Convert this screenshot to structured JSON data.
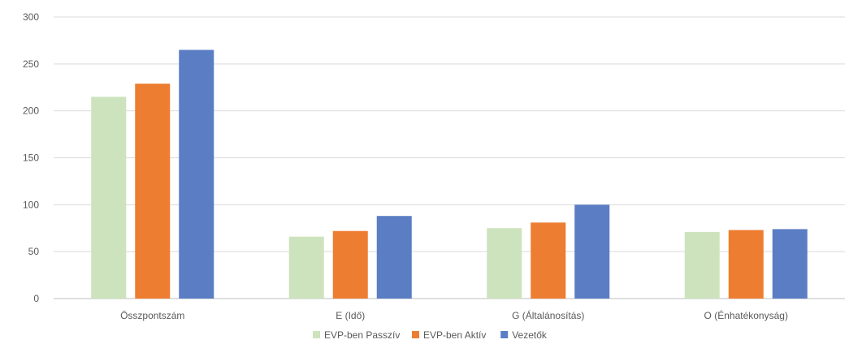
{
  "chart_data": {
    "type": "bar",
    "categories": [
      "Összpontszám",
      "E (Idő)",
      "G (Általánosítás)",
      "O (Énhatékonyság)"
    ],
    "series": [
      {
        "name": "EVP-ben Passzív",
        "values": [
          215,
          66,
          75,
          71
        ],
        "color": "#cde3bd"
      },
      {
        "name": "EVP-ben Aktív",
        "values": [
          229,
          72,
          81,
          73
        ],
        "color": "#ed7d31"
      },
      {
        "name": "Vezetők",
        "values": [
          265,
          88,
          100,
          74
        ],
        "color": "#5a7dc3"
      }
    ],
    "ylim": [
      0,
      300
    ],
    "yticks": [
      0,
      50,
      100,
      150,
      200,
      250,
      300
    ],
    "grid": true,
    "legend": "bottom-center"
  }
}
